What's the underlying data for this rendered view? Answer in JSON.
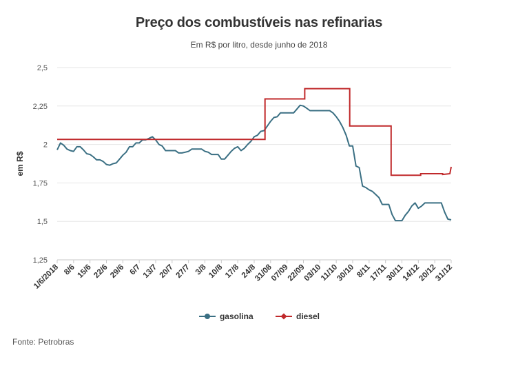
{
  "chart_data": {
    "type": "line",
    "title": "Preço dos combustíveis nas refinarias",
    "subtitle": "Em R$ por litro, desde junho de 2018",
    "ylabel": "em R$",
    "xlabel": "",
    "ylim": [
      1.25,
      2.5
    ],
    "yticks": [
      1.25,
      1.5,
      1.75,
      2,
      2.25,
      2.5
    ],
    "ytick_labels": [
      "1,25",
      "1,5",
      "1,75",
      "2",
      "2,25",
      "2,5"
    ],
    "x_tick_labels": [
      "1/6/2018",
      "8/6",
      "15/6",
      "22/6",
      "29/6",
      "6/7",
      "13/7",
      "20/7",
      "27/7",
      "3/8",
      "10/8",
      "17/8",
      "24/8",
      "31/08",
      "07/09",
      "22/09",
      "03/10",
      "11/10",
      "30/10",
      "8/11",
      "17/11",
      "30/11",
      "14/12",
      "20/12",
      "31/12"
    ],
    "grid": true,
    "legend_position": "bottom",
    "series": [
      {
        "name": "gasolina",
        "color": "#3a6f83",
        "marker": "circle",
        "values": [
          1.965,
          2.01,
          1.995,
          1.97,
          1.96,
          1.955,
          1.985,
          1.985,
          1.965,
          1.94,
          1.935,
          1.92,
          1.9,
          1.9,
          1.89,
          1.87,
          1.865,
          1.875,
          1.88,
          1.905,
          1.93,
          1.95,
          1.985,
          1.985,
          2.01,
          2.01,
          2.03,
          2.03,
          2.04,
          2.05,
          2.03,
          2.0,
          1.99,
          1.96,
          1.96,
          1.96,
          1.96,
          1.945,
          1.945,
          1.95,
          1.955,
          1.97,
          1.97,
          1.97,
          1.97,
          1.955,
          1.95,
          1.935,
          1.935,
          1.935,
          1.905,
          1.905,
          1.93,
          1.955,
          1.975,
          1.985,
          1.96,
          1.975,
          2.0,
          2.02,
          2.05,
          2.06,
          2.085,
          2.09,
          2.12,
          2.15,
          2.175,
          2.18,
          2.205,
          2.205,
          2.205,
          2.205,
          2.205,
          2.23,
          2.255,
          2.25,
          2.235,
          2.22,
          2.22,
          2.22,
          2.22,
          2.22,
          2.22,
          2.22,
          2.205,
          2.18,
          2.15,
          2.11,
          2.06,
          1.99,
          1.99,
          1.86,
          1.85,
          1.73,
          1.72,
          1.705,
          1.695,
          1.675,
          1.655,
          1.61,
          1.61,
          1.61,
          1.545,
          1.505,
          1.505,
          1.505,
          1.54,
          1.565,
          1.6,
          1.62,
          1.585,
          1.6,
          1.62,
          1.62,
          1.62,
          1.62,
          1.62,
          1.62,
          1.56,
          1.515,
          1.51
        ]
      },
      {
        "name": "diesel",
        "color": "#c0292b",
        "marker": "diamond",
        "steps": [
          {
            "x": 0,
            "y": 2.033
          },
          {
            "x": 63.3,
            "y": 2.033
          },
          {
            "x": 63.3,
            "y": 2.296
          },
          {
            "x": 75.4,
            "y": 2.296
          },
          {
            "x": 75.4,
            "y": 2.363
          },
          {
            "x": 89.1,
            "y": 2.363
          },
          {
            "x": 89.1,
            "y": 2.12
          },
          {
            "x": 101.7,
            "y": 2.12
          },
          {
            "x": 101.7,
            "y": 1.8
          },
          {
            "x": 110.7,
            "y": 1.8
          },
          {
            "x": 110.7,
            "y": 1.81
          },
          {
            "x": 117.4,
            "y": 1.81
          },
          {
            "x": 117.4,
            "y": 1.805
          },
          {
            "x": 119.6,
            "y": 1.81
          },
          {
            "x": 120,
            "y": 1.855
          }
        ]
      }
    ]
  },
  "source": "Fonte: Petrobras"
}
